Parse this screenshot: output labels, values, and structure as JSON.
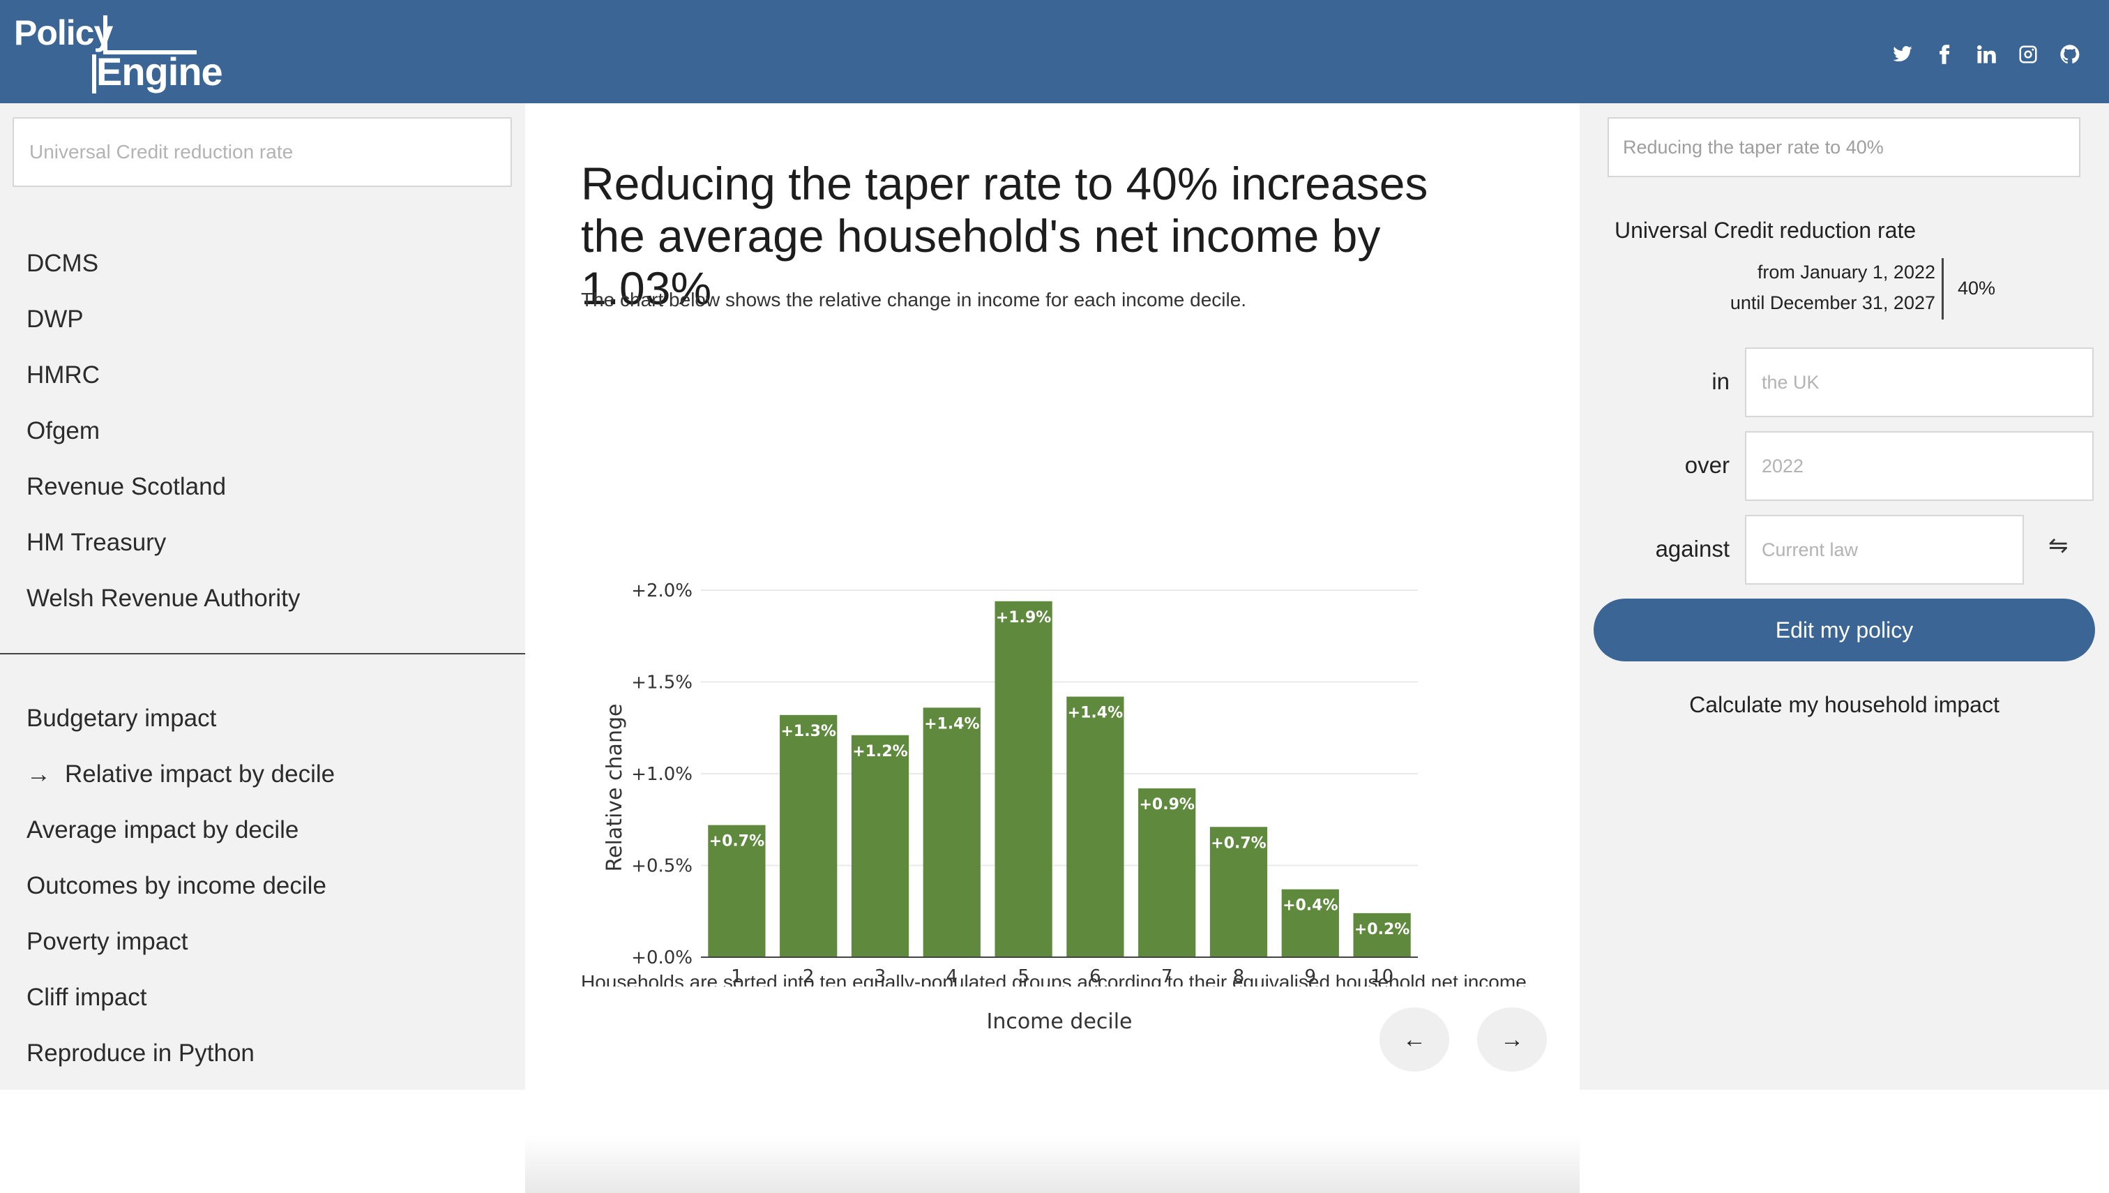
{
  "header": {
    "logo_line1": "Policy",
    "logo_line2": "Engine",
    "social": [
      "twitter-icon",
      "facebook-icon",
      "linkedin-icon",
      "instagram-icon",
      "github-icon"
    ],
    "color": "#3a6594"
  },
  "left": {
    "search_placeholder": "Universal Credit reduction rate",
    "departments": [
      "DCMS",
      "DWP",
      "HMRC",
      "Ofgem",
      "Revenue Scotland",
      "HM Treasury",
      "Welsh Revenue Authority"
    ],
    "arrow": "→",
    "sections": [
      {
        "label": "Budgetary impact",
        "active": false
      },
      {
        "label": "Relative impact by decile",
        "active": true
      },
      {
        "label": "Average impact by decile",
        "active": false
      },
      {
        "label": "Outcomes by income decile",
        "active": false
      },
      {
        "label": "Poverty impact",
        "active": false
      },
      {
        "label": "Cliff impact",
        "active": false
      },
      {
        "label": "Reproduce in Python",
        "active": false
      }
    ]
  },
  "main": {
    "headline": "Reducing the taper rate to 40% increases the average household's net income by 1.03%",
    "description": "The chart below shows the relative change in income for each income decile.",
    "footnote": "Households are sorted into ten equally-populated groups according to their equivalised household net income.",
    "prev": "←",
    "next": "→"
  },
  "chart_data": {
    "type": "bar",
    "categories": [
      "1",
      "2",
      "3",
      "4",
      "5",
      "6",
      "7",
      "8",
      "9",
      "10"
    ],
    "values": [
      0.72,
      1.32,
      1.21,
      1.36,
      1.94,
      1.42,
      0.92,
      0.71,
      0.37,
      0.24
    ],
    "data_labels": [
      "+0.7%",
      "+1.3%",
      "+1.2%",
      "+1.4%",
      "+1.9%",
      "+1.4%",
      "+0.9%",
      "+0.7%",
      "+0.4%",
      "+0.2%"
    ],
    "xlabel": "Income decile",
    "ylabel": "Relative change",
    "yticks": [
      0,
      0.5,
      1.0,
      1.5,
      2.0
    ],
    "ytick_labels": [
      "+0.0%",
      "+0.5%",
      "+1.0%",
      "+1.5%",
      "+2.0%"
    ],
    "ylim": [
      0,
      2.0
    ],
    "bar_color": "#5f8a3e",
    "grid": true
  },
  "right": {
    "policy_search": "Reducing the taper rate to 40%",
    "parameter": "Universal Credit reduction rate",
    "from": "from January 1, 2022",
    "until": "until December 31, 2027",
    "value": "40%",
    "in_label": "in",
    "in_value": "the UK",
    "over_label": "over",
    "over_value": "2022",
    "against_label": "against",
    "against_value": "Current law",
    "swap": "⇋",
    "edit_button": "Edit my policy",
    "calc_link": "Calculate my household impact"
  }
}
